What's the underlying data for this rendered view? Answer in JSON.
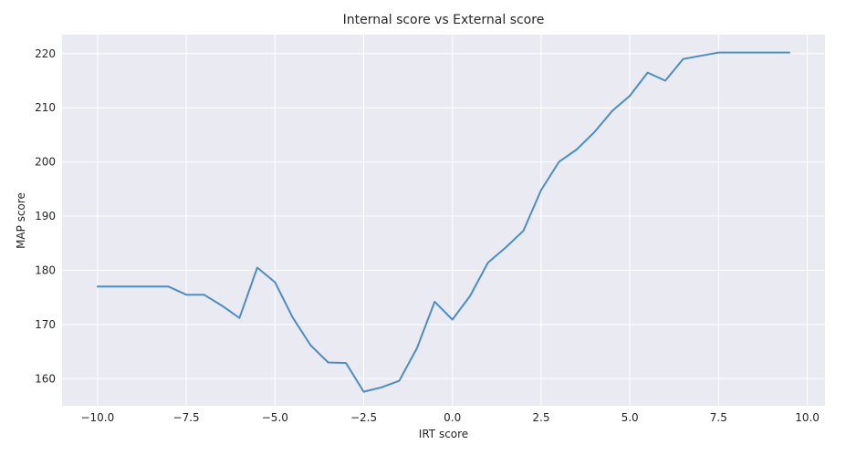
{
  "chart_data": {
    "type": "line",
    "title": "Internal score vs External score",
    "xlabel": "IRT score",
    "ylabel": "MAP score",
    "xlim": [
      -11.0,
      10.5
    ],
    "ylim": [
      155,
      223.5
    ],
    "xticks": [
      -10.0,
      -7.5,
      -5.0,
      -2.5,
      0.0,
      2.5,
      5.0,
      7.5,
      10.0
    ],
    "xtick_labels": [
      "−10.0",
      "−7.5",
      "−5.0",
      "−2.5",
      "0.0",
      "2.5",
      "5.0",
      "7.5",
      "10.0"
    ],
    "yticks": [
      160,
      170,
      180,
      190,
      200,
      210,
      220
    ],
    "ytick_labels": [
      "160",
      "170",
      "180",
      "190",
      "200",
      "210",
      "220"
    ],
    "grid": true,
    "legend": "none",
    "background_color": "#eaeaf2",
    "grid_color": "#ffffff",
    "series": [
      {
        "color": "#4c8dc4",
        "x": [
          -10.0,
          -9.5,
          -9.0,
          -8.5,
          -8.0,
          -7.5,
          -7.0,
          -6.5,
          -6.0,
          -5.5,
          -5.0,
          -4.5,
          -4.0,
          -3.5,
          -3.0,
          -2.5,
          -2.0,
          -1.5,
          -1.0,
          -0.5,
          0.0,
          0.5,
          1.0,
          1.5,
          2.0,
          2.5,
          3.0,
          3.5,
          4.0,
          4.5,
          5.0,
          5.5,
          6.0,
          6.5,
          7.0,
          7.5,
          8.0,
          8.5,
          9.0,
          9.5
        ],
        "y": [
          177.0,
          177.0,
          177.0,
          177.0,
          177.0,
          175.5,
          175.5,
          173.5,
          171.2,
          180.5,
          177.8,
          171.3,
          166.2,
          163.0,
          162.9,
          157.6,
          158.4,
          159.6,
          165.6,
          174.2,
          170.9,
          175.3,
          181.4,
          184.2,
          187.3,
          194.8,
          200.0,
          202.3,
          205.5,
          209.4,
          212.2,
          216.5,
          215.0,
          219.0,
          219.6,
          220.2,
          220.2,
          220.2,
          220.2,
          220.2
        ]
      }
    ]
  }
}
